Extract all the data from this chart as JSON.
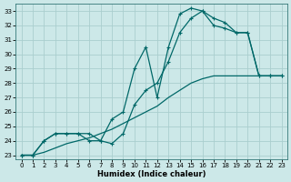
{
  "xlabel": "Humidex (Indice chaleur)",
  "ylabel": "",
  "background_color": "#cce8e8",
  "grid_color": "#aacece",
  "line_color": "#006868",
  "xlim": [
    -0.5,
    23.5
  ],
  "ylim": [
    22.7,
    33.5
  ],
  "yticks": [
    23,
    24,
    25,
    26,
    27,
    28,
    29,
    30,
    31,
    32,
    33
  ],
  "xticks": [
    0,
    1,
    2,
    3,
    4,
    5,
    6,
    7,
    8,
    9,
    10,
    11,
    12,
    13,
    14,
    15,
    16,
    17,
    18,
    19,
    20,
    21,
    22,
    23
  ],
  "line1_x": [
    0,
    1,
    2,
    3,
    4,
    5,
    6,
    7,
    8,
    9,
    10,
    11,
    12,
    13,
    14,
    15,
    16,
    17,
    18,
    19,
    20,
    21,
    22,
    23
  ],
  "line1_y": [
    23.0,
    23.0,
    24.0,
    24.5,
    24.5,
    24.5,
    24.5,
    24.0,
    25.5,
    26.0,
    29.0,
    30.5,
    27.0,
    30.5,
    32.8,
    33.2,
    33.0,
    32.5,
    32.2,
    31.5,
    31.5,
    28.5,
    28.5,
    28.5
  ],
  "line2_x": [
    0,
    1,
    2,
    3,
    4,
    5,
    6,
    7,
    8,
    9,
    10,
    11,
    12,
    13,
    14,
    15,
    16,
    17,
    18,
    19,
    20,
    21,
    22,
    23
  ],
  "line2_y": [
    23.0,
    23.0,
    24.0,
    24.5,
    24.5,
    24.5,
    24.0,
    24.0,
    23.8,
    24.5,
    26.5,
    27.5,
    28.0,
    29.5,
    31.5,
    32.5,
    33.0,
    32.0,
    31.8,
    31.5,
    31.5,
    28.5,
    28.5,
    28.5
  ],
  "line3_x": [
    0,
    1,
    2,
    3,
    4,
    5,
    6,
    7,
    8,
    9,
    10,
    11,
    12,
    13,
    14,
    15,
    16,
    17,
    18,
    19,
    20,
    21,
    22,
    23
  ],
  "line3_y": [
    23.0,
    23.0,
    23.2,
    23.5,
    23.8,
    24.0,
    24.2,
    24.5,
    24.8,
    25.2,
    25.6,
    26.0,
    26.4,
    27.0,
    27.5,
    28.0,
    28.3,
    28.5,
    28.5,
    28.5,
    28.5,
    28.5,
    28.5,
    28.5
  ]
}
